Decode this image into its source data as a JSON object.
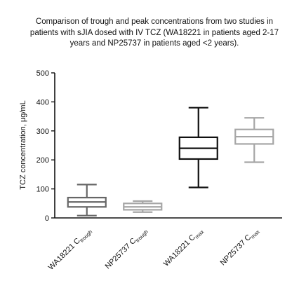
{
  "chart_data": {
    "type": "boxplot",
    "title": "Comparison of trough and peak concentrations from two studies in patients with sJIA dosed with IV TCZ (WA18221 in patients aged 2-17 years and NP25737 in patients aged <2 years).",
    "ylabel": "TCZ concentration, µg/mL",
    "xlabel": "",
    "ylim": [
      0,
      500
    ],
    "yticks": [
      0,
      100,
      200,
      300,
      400,
      500
    ],
    "grid": false,
    "categories": [
      {
        "base": "WA18221 C",
        "sub": "trough"
      },
      {
        "base": "NP25737 C",
        "sub": "trough"
      },
      {
        "base": "WA18221 C",
        "sub": "max"
      },
      {
        "base": "NP25737 C",
        "sub": "max"
      }
    ],
    "boxes": [
      {
        "min": 8,
        "q1": 38,
        "median": 55,
        "q3": 70,
        "max": 115,
        "color": "#666666"
      },
      {
        "min": 20,
        "q1": 28,
        "median": 38,
        "q3": 50,
        "max": 58,
        "color": "#a6a6a6"
      },
      {
        "min": 105,
        "q1": 203,
        "median": 240,
        "q3": 278,
        "max": 380,
        "color": "#111111"
      },
      {
        "min": 192,
        "q1": 255,
        "median": 280,
        "q3": 305,
        "max": 345,
        "color": "#a6a6a6"
      }
    ]
  }
}
